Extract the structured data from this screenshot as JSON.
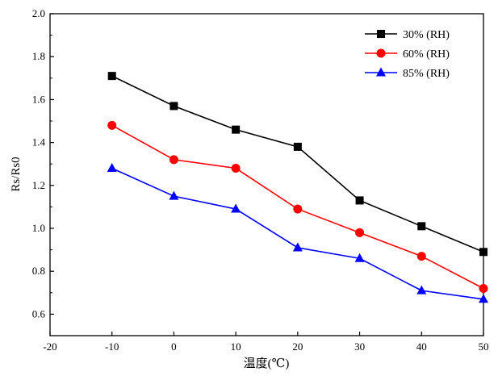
{
  "chart_data": {
    "type": "line",
    "title": "",
    "xlabel": "温度(℃)",
    "ylabel": "Rs/Rs0",
    "xlim": [
      -20,
      50
    ],
    "ylim": [
      0.5,
      2.0
    ],
    "xticks": [
      -20,
      -10,
      0,
      10,
      20,
      30,
      40,
      50
    ],
    "yticks": [
      0.6,
      0.8,
      1.0,
      1.2,
      1.4,
      1.6,
      1.8,
      2.0
    ],
    "x": [
      -10,
      0,
      10,
      20,
      30,
      40,
      50
    ],
    "grid": false,
    "legend_position": "top-right",
    "series": [
      {
        "name": "30% (RH)",
        "color": "#000000",
        "marker": "square",
        "values": [
          1.71,
          1.57,
          1.46,
          1.38,
          1.13,
          1.01,
          0.89
        ]
      },
      {
        "name": "60% (RH)",
        "color": "#ff0000",
        "marker": "circle",
        "values": [
          1.48,
          1.32,
          1.28,
          1.09,
          0.98,
          0.87,
          0.72
        ]
      },
      {
        "name": "85% (RH)",
        "color": "#0000ff",
        "marker": "triangle",
        "values": [
          1.28,
          1.15,
          1.09,
          0.91,
          0.86,
          0.71,
          0.67
        ]
      }
    ]
  }
}
